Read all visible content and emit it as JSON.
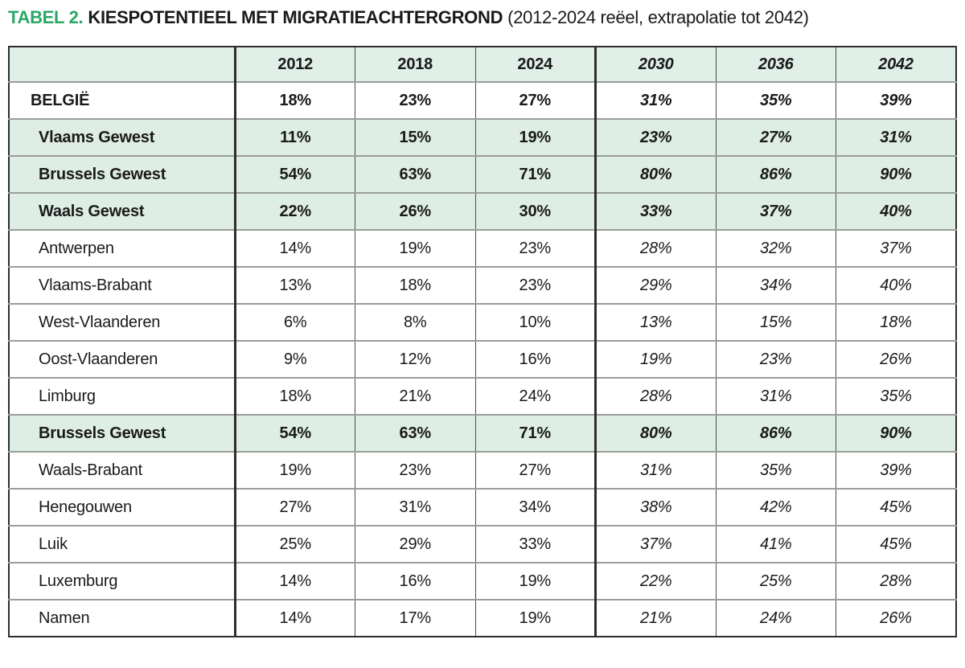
{
  "title": {
    "label": "TABEL 2.",
    "heading": "KIESPOTENTIEEL MET MIGRATIEACHTERGROND",
    "subtitle": "(2012-2024 reëel, extrapolatie tot 2042)"
  },
  "colors": {
    "accent_green": "#2ba767",
    "header_bg": "#e0efe7",
    "highlight_row_bg": "#deeee4",
    "outer_border": "#2d2d2d",
    "row_separator": "#989e98"
  },
  "table": {
    "columns": [
      "",
      "2012",
      "2018",
      "2024",
      "2030",
      "2036",
      "2042"
    ],
    "rows": [
      {
        "label": "BELGIË",
        "values": [
          "18%",
          "23%",
          "27%",
          "31%",
          "35%",
          "39%"
        ],
        "bold": true,
        "highlight": false,
        "top_level": true
      },
      {
        "label": "Vlaams Gewest",
        "values": [
          "11%",
          "15%",
          "19%",
          "23%",
          "27%",
          "31%"
        ],
        "bold": true,
        "highlight": true,
        "top_level": false
      },
      {
        "label": "Brussels Gewest",
        "values": [
          "54%",
          "63%",
          "71%",
          "80%",
          "86%",
          "90%"
        ],
        "bold": true,
        "highlight": true,
        "top_level": false
      },
      {
        "label": "Waals Gewest",
        "values": [
          "22%",
          "26%",
          "30%",
          "33%",
          "37%",
          "40%"
        ],
        "bold": true,
        "highlight": true,
        "top_level": false
      },
      {
        "label": "Antwerpen",
        "values": [
          "14%",
          "19%",
          "23%",
          "28%",
          "32%",
          "37%"
        ],
        "bold": false,
        "highlight": false,
        "top_level": false
      },
      {
        "label": "Vlaams-Brabant",
        "values": [
          "13%",
          "18%",
          "23%",
          "29%",
          "34%",
          "40%"
        ],
        "bold": false,
        "highlight": false,
        "top_level": false
      },
      {
        "label": "West-Vlaanderen",
        "values": [
          "6%",
          "8%",
          "10%",
          "13%",
          "15%",
          "18%"
        ],
        "bold": false,
        "highlight": false,
        "top_level": false
      },
      {
        "label": "Oost-Vlaanderen",
        "values": [
          "9%",
          "12%",
          "16%",
          "19%",
          "23%",
          "26%"
        ],
        "bold": false,
        "highlight": false,
        "top_level": false
      },
      {
        "label": "Limburg",
        "values": [
          "18%",
          "21%",
          "24%",
          "28%",
          "31%",
          "35%"
        ],
        "bold": false,
        "highlight": false,
        "top_level": false
      },
      {
        "label": "Brussels Gewest",
        "values": [
          "54%",
          "63%",
          "71%",
          "80%",
          "86%",
          "90%"
        ],
        "bold": true,
        "highlight": true,
        "top_level": false
      },
      {
        "label": "Waals-Brabant",
        "values": [
          "19%",
          "23%",
          "27%",
          "31%",
          "35%",
          "39%"
        ],
        "bold": false,
        "highlight": false,
        "top_level": false
      },
      {
        "label": "Henegouwen",
        "values": [
          "27%",
          "31%",
          "34%",
          "38%",
          "42%",
          "45%"
        ],
        "bold": false,
        "highlight": false,
        "top_level": false
      },
      {
        "label": "Luik",
        "values": [
          "25%",
          "29%",
          "33%",
          "37%",
          "41%",
          "45%"
        ],
        "bold": false,
        "highlight": false,
        "top_level": false
      },
      {
        "label": "Luxemburg",
        "values": [
          "14%",
          "16%",
          "19%",
          "22%",
          "25%",
          "28%"
        ],
        "bold": false,
        "highlight": false,
        "top_level": false
      },
      {
        "label": "Namen",
        "values": [
          "14%",
          "17%",
          "19%",
          "21%",
          "24%",
          "26%"
        ],
        "bold": false,
        "highlight": false,
        "top_level": false
      }
    ]
  },
  "chart_data": {
    "type": "table",
    "title": "TABEL 2. KIESPOTENTIEEL MET MIGRATIEACHTERGROND (2012-2024 reëel, extrapolatie tot 2042)",
    "unit": "%",
    "categories": [
      2012,
      2018,
      2024,
      2030,
      2036,
      2042
    ],
    "real_years": [
      2012,
      2018,
      2024
    ],
    "extrapolated_years": [
      2030,
      2036,
      2042
    ],
    "series": [
      {
        "name": "BELGIË",
        "values": [
          18,
          23,
          27,
          31,
          35,
          39
        ]
      },
      {
        "name": "Vlaams Gewest",
        "values": [
          11,
          15,
          19,
          23,
          27,
          31
        ]
      },
      {
        "name": "Brussels Gewest",
        "values": [
          54,
          63,
          71,
          80,
          86,
          90
        ]
      },
      {
        "name": "Waals Gewest",
        "values": [
          22,
          26,
          30,
          33,
          37,
          40
        ]
      },
      {
        "name": "Antwerpen",
        "values": [
          14,
          19,
          23,
          28,
          32,
          37
        ]
      },
      {
        "name": "Vlaams-Brabant",
        "values": [
          13,
          18,
          23,
          29,
          34,
          40
        ]
      },
      {
        "name": "West-Vlaanderen",
        "values": [
          6,
          8,
          10,
          13,
          15,
          18
        ]
      },
      {
        "name": "Oost-Vlaanderen",
        "values": [
          9,
          12,
          16,
          19,
          23,
          26
        ]
      },
      {
        "name": "Limburg",
        "values": [
          18,
          21,
          24,
          28,
          31,
          35
        ]
      },
      {
        "name": "Brussels Gewest",
        "values": [
          54,
          63,
          71,
          80,
          86,
          90
        ]
      },
      {
        "name": "Waals-Brabant",
        "values": [
          19,
          23,
          27,
          31,
          35,
          39
        ]
      },
      {
        "name": "Henegouwen",
        "values": [
          27,
          31,
          34,
          38,
          42,
          45
        ]
      },
      {
        "name": "Luik",
        "values": [
          25,
          29,
          33,
          37,
          41,
          45
        ]
      },
      {
        "name": "Luxemburg",
        "values": [
          14,
          16,
          19,
          22,
          25,
          28
        ]
      },
      {
        "name": "Namen",
        "values": [
          14,
          17,
          19,
          21,
          24,
          26
        ]
      }
    ]
  }
}
